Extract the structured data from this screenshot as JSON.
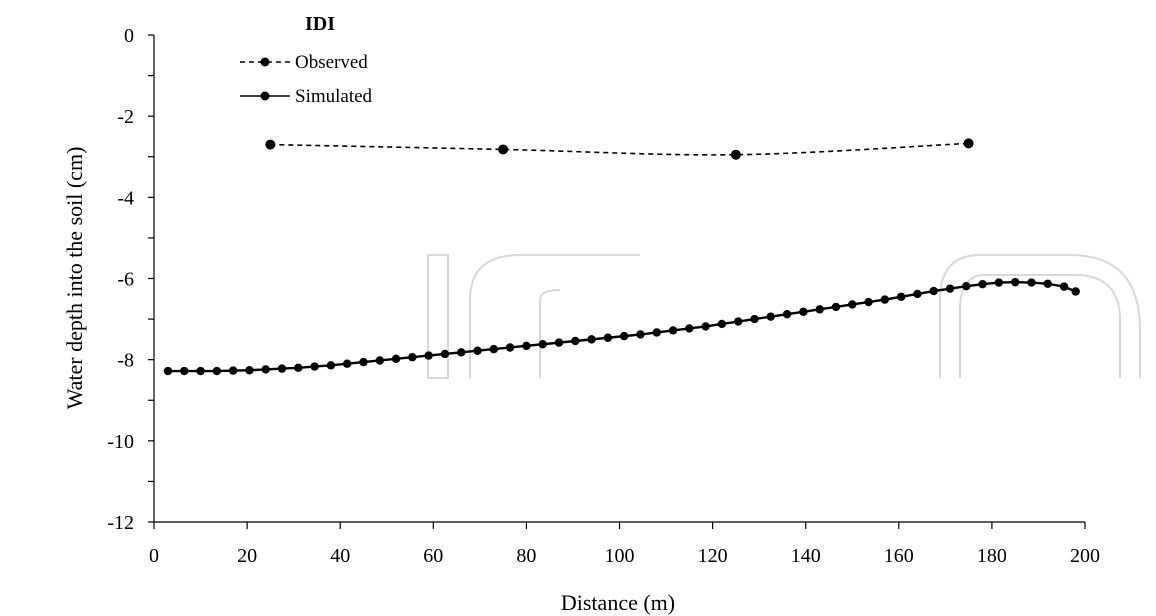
{
  "chart_data": {
    "type": "line",
    "title": "IDI",
    "xlabel": "Distance (m)",
    "ylabel": "Water depth into the soil (cm)",
    "xlim": [
      0,
      200
    ],
    "ylim": [
      -12,
      0
    ],
    "xticks": [
      "0",
      "20",
      "40",
      "60",
      "80",
      "100",
      "120",
      "140",
      "160",
      "180",
      "200"
    ],
    "yticks": [
      "0",
      "-2",
      "-4",
      "-6",
      "-8",
      "-10",
      "-12"
    ],
    "grid": false,
    "legend_position": "top-left",
    "series": [
      {
        "name": "Observed",
        "style": "dashed",
        "color": "#000000",
        "x": [
          25,
          75,
          125,
          175
        ],
        "y": [
          -2.7,
          -2.82,
          -2.95,
          -2.67
        ]
      },
      {
        "name": "Simulated",
        "style": "solid",
        "color": "#000000",
        "x": [
          3,
          6.5,
          10,
          13.5,
          17,
          20.5,
          24,
          27.5,
          31,
          34.5,
          38,
          41.5,
          45,
          48.5,
          52,
          55.5,
          59,
          62.5,
          66,
          69.5,
          73,
          76.5,
          80,
          83.5,
          87,
          90.5,
          94,
          97.5,
          101,
          104.5,
          108,
          111.5,
          115,
          118.5,
          122,
          125.5,
          129,
          132.5,
          136,
          139.5,
          143,
          146.5,
          150,
          153.5,
          157,
          160.5,
          164,
          167.5,
          171,
          174.5,
          178,
          181.5,
          185,
          188.5,
          192,
          195.5,
          198
        ],
        "y": [
          -8.28,
          -8.28,
          -8.28,
          -8.28,
          -8.27,
          -8.26,
          -8.24,
          -8.22,
          -8.2,
          -8.17,
          -8.14,
          -8.1,
          -8.06,
          -8.02,
          -7.98,
          -7.94,
          -7.9,
          -7.86,
          -7.82,
          -7.78,
          -7.74,
          -7.7,
          -7.66,
          -7.62,
          -7.58,
          -7.54,
          -7.5,
          -7.46,
          -7.42,
          -7.38,
          -7.33,
          -7.28,
          -7.23,
          -7.18,
          -7.12,
          -7.06,
          -7.0,
          -6.94,
          -6.88,
          -6.82,
          -6.76,
          -6.7,
          -6.64,
          -6.58,
          -6.52,
          -6.45,
          -6.38,
          -6.31,
          -6.25,
          -6.19,
          -6.14,
          -6.1,
          -6.09,
          -6.1,
          -6.13,
          -6.2,
          -6.32
        ]
      }
    ]
  }
}
